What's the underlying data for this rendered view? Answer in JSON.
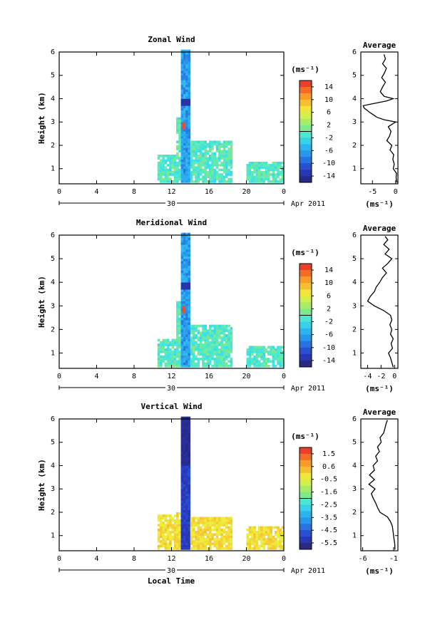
{
  "chart_data": [
    {
      "type": "heatmap",
      "title": "Zonal Wind",
      "xlabel": "",
      "ylabel": "Height (km)",
      "x_ticks": [
        "0",
        "4",
        "8",
        "12",
        "16",
        "20",
        "0"
      ],
      "xlim": [
        0,
        24
      ],
      "y_ticks": [
        "1",
        "2",
        "3",
        "4",
        "5",
        "6"
      ],
      "ylim": [
        0.35,
        6.0
      ],
      "date_day": "30",
      "date_label": "Apr 2011",
      "colorbar": {
        "unit": "(ms⁻¹)",
        "ticks": [
          "14",
          "10",
          "6",
          "2",
          "-2",
          "-6",
          "-10",
          "-14"
        ],
        "range": [
          -16,
          16
        ]
      },
      "average_profile": {
        "title": "Average",
        "xlabel": "(ms⁻¹)",
        "x_ticks": [
          "-5",
          "0"
        ],
        "xlim": [
          -7.5,
          0.5
        ],
        "y_ticks": [
          "1",
          "2",
          "3",
          "4",
          "5",
          "6"
        ],
        "heights": [
          0.4,
          0.6,
          0.8,
          1.0,
          1.2,
          1.4,
          1.6,
          1.8,
          2.0,
          2.2,
          2.4,
          2.6,
          2.8,
          3.0,
          3.1,
          3.2,
          3.4,
          3.6,
          3.7,
          3.8,
          3.9,
          4.0,
          4.1,
          4.3,
          4.5,
          4.7,
          4.9,
          5.1,
          5.3,
          5.5,
          5.7,
          5.9
        ],
        "values": [
          0.3,
          0.1,
          0.2,
          -0.5,
          -0.3,
          -0.6,
          -0.4,
          -1.2,
          -0.8,
          -1.9,
          -1.3,
          -1.0,
          -1.6,
          0.0,
          -2.5,
          -4.0,
          -5.5,
          -6.8,
          -7.0,
          -4.5,
          -2.0,
          -0.5,
          -2.5,
          -3.3,
          -2.8,
          -2.2,
          -3.0,
          -2.4,
          -2.0,
          -2.8,
          -2.2,
          -2.5
        ]
      }
    },
    {
      "type": "heatmap",
      "title": "Meridional Wind",
      "xlabel": "",
      "ylabel": "Height (km)",
      "x_ticks": [
        "0",
        "4",
        "8",
        "12",
        "16",
        "20",
        "0"
      ],
      "xlim": [
        0,
        24
      ],
      "y_ticks": [
        "1",
        "2",
        "3",
        "4",
        "5",
        "6"
      ],
      "ylim": [
        0.35,
        6.0
      ],
      "date_day": "30",
      "date_label": "Apr 2011",
      "colorbar": {
        "unit": "(ms⁻¹)",
        "ticks": [
          "14",
          "10",
          "6",
          "2",
          "-2",
          "-6",
          "-10",
          "-14"
        ],
        "range": [
          -16,
          16
        ]
      },
      "average_profile": {
        "title": "Average",
        "xlabel": "(ms⁻¹)",
        "x_ticks": [
          "-4",
          "-2",
          "0"
        ],
        "xlim": [
          -5,
          0.5
        ],
        "y_ticks": [
          "1",
          "2",
          "3",
          "4",
          "5",
          "6"
        ],
        "heights": [
          0.4,
          0.6,
          0.8,
          1.0,
          1.2,
          1.4,
          1.6,
          1.8,
          2.0,
          2.2,
          2.4,
          2.6,
          2.8,
          3.0,
          3.2,
          3.4,
          3.6,
          3.8,
          4.0,
          4.2,
          4.4,
          4.6,
          4.8,
          5.0,
          5.2,
          5.4,
          5.6,
          5.8,
          5.95
        ],
        "values": [
          -0.2,
          -0.4,
          -0.6,
          -0.9,
          -0.3,
          -0.5,
          -0.2,
          -0.6,
          -0.4,
          -0.7,
          -0.4,
          -0.6,
          -1.6,
          -3.0,
          -4.0,
          -3.6,
          -3.0,
          -2.7,
          -2.2,
          -1.8,
          -1.2,
          -1.8,
          -1.0,
          -0.4,
          -1.4,
          -0.8,
          -1.6,
          -1.0,
          -1.4
        ]
      }
    },
    {
      "type": "heatmap",
      "title": "Vertical Wind",
      "xlabel": "Local Time",
      "ylabel": "Height (km)",
      "x_ticks": [
        "0",
        "4",
        "8",
        "12",
        "16",
        "20",
        "0"
      ],
      "xlim": [
        0,
        24
      ],
      "y_ticks": [
        "1",
        "2",
        "3",
        "4",
        "5",
        "6"
      ],
      "ylim": [
        0.35,
        6.0
      ],
      "date_day": "30",
      "date_label": "Apr 2011",
      "colorbar": {
        "unit": "(ms⁻¹)",
        "ticks": [
          "1.5",
          "0.6",
          "-0.5",
          "-1.6",
          "-2.5",
          "-3.5",
          "-4.5",
          "-5.5"
        ],
        "range": [
          -6,
          2
        ]
      },
      "average_profile": {
        "title": "Average",
        "xlabel": "(ms⁻¹)",
        "x_ticks": [
          "-6",
          "-1"
        ],
        "xlim": [
          -6.3,
          -0.3
        ],
        "y_ticks": [
          "1",
          "2",
          "3",
          "4",
          "5",
          "6"
        ],
        "heights": [
          0.4,
          0.6,
          0.8,
          1.0,
          1.2,
          1.4,
          1.6,
          1.8,
          2.0,
          2.2,
          2.4,
          2.6,
          2.8,
          3.0,
          3.2,
          3.4,
          3.6,
          3.8,
          4.0,
          4.2,
          4.4,
          4.6,
          4.8,
          5.0,
          5.2,
          5.4,
          5.6,
          5.8,
          5.95
        ],
        "values": [
          -0.8,
          -0.8,
          -0.9,
          -1.0,
          -1.1,
          -1.2,
          -1.5,
          -2.0,
          -3.2,
          -3.6,
          -3.9,
          -4.3,
          -4.6,
          -4.0,
          -5.0,
          -4.1,
          -4.9,
          -4.1,
          -4.3,
          -3.6,
          -3.9,
          -3.3,
          -3.6,
          -3.0,
          -3.2,
          -2.6,
          -2.4,
          -2.2,
          -2.0
        ]
      }
    }
  ]
}
